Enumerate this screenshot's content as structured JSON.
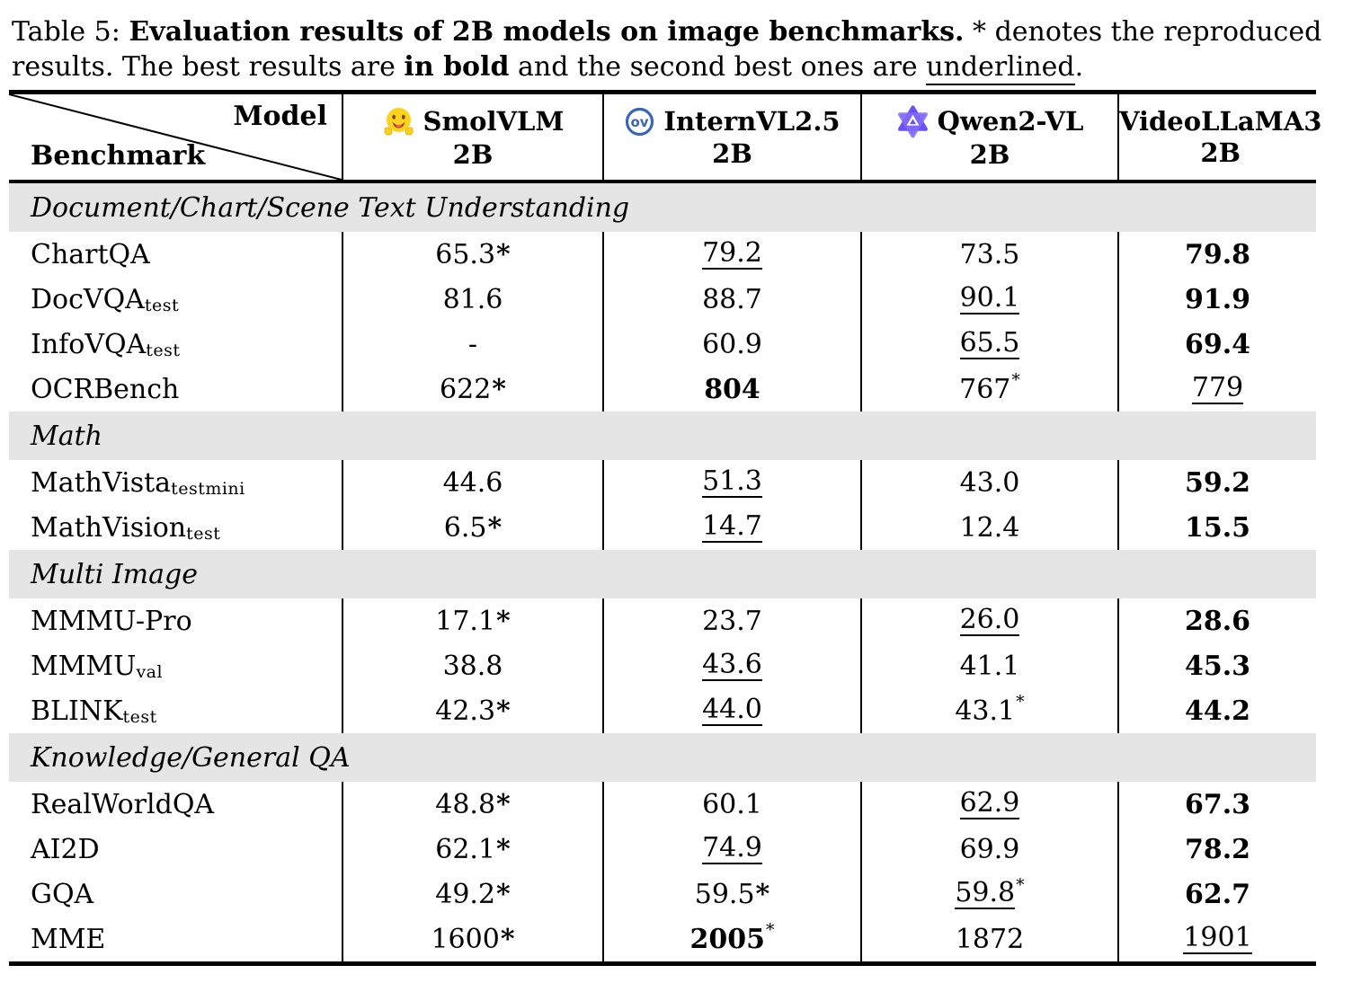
{
  "caption": {
    "label": "Table 5:",
    "title": "Evaluation results of 2B models on image benchmarks.",
    "star": "*",
    "text_a": "denotes the reproduced results. The best results are",
    "bold_phrase": "in bold",
    "text_b": "and the second best ones are",
    "underline_word": "underlined",
    "terminal": "."
  },
  "header": {
    "corner_top": "Model",
    "corner_bottom": "Benchmark",
    "models": [
      {
        "label": "SmolVLM",
        "size": "2B",
        "icon": "hugging-face-icon"
      },
      {
        "label": "InternVL2.5",
        "size": "2B",
        "icon": "opengvlab-icon"
      },
      {
        "label": "Qwen2-VL",
        "size": "2B",
        "icon": "qwen-icon"
      },
      {
        "label": "VideoLLaMA3",
        "size": "2B",
        "icon": ""
      }
    ]
  },
  "colors": {
    "section_band": "#e5e5e5",
    "rule": "#000000",
    "hf_yellow": "#FFD21E",
    "internvl_blue": "#3A66B5",
    "qwen_purple": "#6C4FF7"
  },
  "sections": [
    {
      "title": "Document/Chart/Scene Text Understanding",
      "rows": [
        {
          "benchmark": "ChartQA",
          "sub": "",
          "cells": [
            {
              "v": "65.3",
              "star": "inline"
            },
            {
              "v": "79.2",
              "underline": true
            },
            {
              "v": "73.5"
            },
            {
              "v": "79.8",
              "bold": true
            }
          ]
        },
        {
          "benchmark": "DocVQA",
          "sub": "test",
          "cells": [
            {
              "v": "81.6"
            },
            {
              "v": "88.7"
            },
            {
              "v": "90.1",
              "underline": true
            },
            {
              "v": "91.9",
              "bold": true
            }
          ]
        },
        {
          "benchmark": "InfoVQA",
          "sub": "test",
          "cells": [
            {
              "v": "-"
            },
            {
              "v": "60.9"
            },
            {
              "v": "65.5",
              "underline": true
            },
            {
              "v": "69.4",
              "bold": true
            }
          ]
        },
        {
          "benchmark": "OCRBench",
          "sub": "",
          "cells": [
            {
              "v": "622",
              "star": "inline"
            },
            {
              "v": "804",
              "bold": true
            },
            {
              "v": "767",
              "star": "sup"
            },
            {
              "v": "779",
              "underline": true
            }
          ]
        }
      ]
    },
    {
      "title": "Math",
      "rows": [
        {
          "benchmark": "MathVista",
          "sub": "testmini",
          "cells": [
            {
              "v": "44.6"
            },
            {
              "v": "51.3",
              "underline": true
            },
            {
              "v": "43.0"
            },
            {
              "v": "59.2",
              "bold": true
            }
          ]
        },
        {
          "benchmark": "MathVision",
          "sub": "test",
          "cells": [
            {
              "v": "6.5",
              "star": "inline"
            },
            {
              "v": "14.7",
              "underline": true
            },
            {
              "v": "12.4"
            },
            {
              "v": "15.5",
              "bold": true
            }
          ]
        }
      ]
    },
    {
      "title": "Multi Image",
      "rows": [
        {
          "benchmark": "MMMU-Pro",
          "sub": "",
          "cells": [
            {
              "v": "17.1",
              "star": "inline"
            },
            {
              "v": "23.7"
            },
            {
              "v": "26.0",
              "underline": true
            },
            {
              "v": "28.6",
              "bold": true
            }
          ]
        },
        {
          "benchmark": "MMMU",
          "sub": "val",
          "cells": [
            {
              "v": "38.8"
            },
            {
              "v": "43.6",
              "underline": true
            },
            {
              "v": "41.1"
            },
            {
              "v": "45.3",
              "bold": true
            }
          ]
        },
        {
          "benchmark": "BLINK",
          "sub": "test",
          "cells": [
            {
              "v": "42.3",
              "star": "inline"
            },
            {
              "v": "44.0",
              "underline": true
            },
            {
              "v": "43.1",
              "star": "sup"
            },
            {
              "v": "44.2",
              "bold": true
            }
          ]
        }
      ]
    },
    {
      "title": "Knowledge/General QA",
      "rows": [
        {
          "benchmark": "RealWorldQA",
          "sub": "",
          "cells": [
            {
              "v": "48.8",
              "star": "inline"
            },
            {
              "v": "60.1"
            },
            {
              "v": "62.9",
              "underline": true
            },
            {
              "v": "67.3",
              "bold": true
            }
          ]
        },
        {
          "benchmark": "AI2D",
          "sub": "",
          "cells": [
            {
              "v": "62.1",
              "star": "inline"
            },
            {
              "v": "74.9",
              "underline": true
            },
            {
              "v": "69.9"
            },
            {
              "v": "78.2",
              "bold": true
            }
          ]
        },
        {
          "benchmark": "GQA",
          "sub": "",
          "cells": [
            {
              "v": "49.2",
              "star": "inline"
            },
            {
              "v": "59.5",
              "star": "inline"
            },
            {
              "v": "59.8",
              "underline": true,
              "star": "sup"
            },
            {
              "v": "62.7",
              "bold": true
            }
          ]
        },
        {
          "benchmark": "MME",
          "sub": "",
          "cells": [
            {
              "v": "1600",
              "star": "inline"
            },
            {
              "v": "2005",
              "bold": true,
              "star": "sup"
            },
            {
              "v": "1872"
            },
            {
              "v": "1901",
              "underline": true
            }
          ]
        }
      ]
    }
  ]
}
